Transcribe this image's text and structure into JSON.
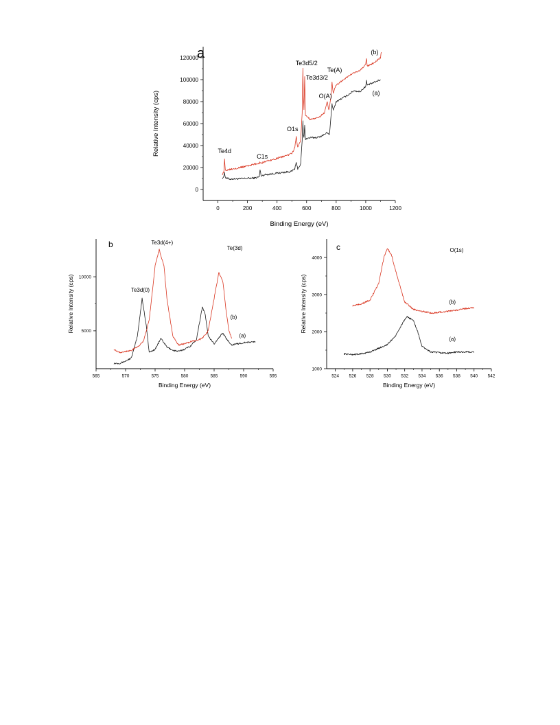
{
  "colors": {
    "series_a": "#1a1a1a",
    "series_b": "#d9341f"
  },
  "chart_data": [
    {
      "id": "a",
      "type": "line",
      "panel_label": "a",
      "xlabel": "Binding Energy (eV)",
      "ylabel": "Relative Intensity (cps)",
      "xlim": [
        -100,
        1200
      ],
      "ylim": [
        -10000,
        130000
      ],
      "xticks": [
        0,
        200,
        400,
        600,
        800,
        1000,
        1200
      ],
      "yticks": [
        0,
        20000,
        40000,
        60000,
        80000,
        100000,
        120000
      ],
      "grid": false,
      "series": [
        {
          "name": "(a)",
          "color": "#1a1a1a",
          "points": [
            [
              30,
              10500
            ],
            [
              40,
              11500
            ],
            [
              45,
              16000
            ],
            [
              50,
              10800
            ],
            [
              80,
              9500
            ],
            [
              150,
              9800
            ],
            [
              200,
              10200
            ],
            [
              250,
              10500
            ],
            [
              280,
              11500
            ],
            [
              285,
              18000
            ],
            [
              292,
              12500
            ],
            [
              320,
              13500
            ],
            [
              380,
              14500
            ],
            [
              440,
              15500
            ],
            [
              500,
              16500
            ],
            [
              520,
              19000
            ],
            [
              530,
              24000
            ],
            [
              540,
              19000
            ],
            [
              560,
              23000
            ],
            [
              570,
              45000
            ],
            [
              575,
              62000
            ],
            [
              578,
              50000
            ],
            [
              582,
              47000
            ],
            [
              587,
              58000
            ],
            [
              592,
              46000
            ],
            [
              620,
              47000
            ],
            [
              680,
              47500
            ],
            [
              720,
              50000
            ],
            [
              740,
              52000
            ],
            [
              755,
              50000
            ],
            [
              765,
              66000
            ],
            [
              772,
              78000
            ],
            [
              780,
              72000
            ],
            [
              800,
              80000
            ],
            [
              840,
              83000
            ],
            [
              880,
              86000
            ],
            [
              920,
              90000
            ],
            [
              960,
              89000
            ],
            [
              1000,
              94000
            ],
            [
              1005,
              99000
            ],
            [
              1010,
              95000
            ],
            [
              1050,
              97000
            ],
            [
              1100,
              100000
            ]
          ]
        },
        {
          "name": "(b)",
          "color": "#d9341f",
          "points": [
            [
              30,
              14000
            ],
            [
              40,
              16000
            ],
            [
              45,
              27000
            ],
            [
              50,
              17500
            ],
            [
              80,
              18500
            ],
            [
              150,
              20000
            ],
            [
              200,
              21500
            ],
            [
              250,
              23000
            ],
            [
              280,
              24000
            ],
            [
              285,
              25000
            ],
            [
              292,
              24000
            ],
            [
              320,
              25500
            ],
            [
              380,
              27500
            ],
            [
              440,
              30000
            ],
            [
              500,
              32500
            ],
            [
              520,
              38000
            ],
            [
              530,
              48000
            ],
            [
              540,
              38000
            ],
            [
              560,
              45000
            ],
            [
              570,
              70000
            ],
            [
              575,
              111000
            ],
            [
              578,
              85000
            ],
            [
              582,
              72000
            ],
            [
              587,
              102000
            ],
            [
              592,
              68000
            ],
            [
              620,
              64000
            ],
            [
              680,
              65000
            ],
            [
              720,
              70000
            ],
            [
              740,
              80000
            ],
            [
              750,
              72000
            ],
            [
              765,
              84000
            ],
            [
              772,
              98000
            ],
            [
              780,
              88000
            ],
            [
              800,
              95000
            ],
            [
              840,
              99000
            ],
            [
              880,
              103000
            ],
            [
              920,
              106000
            ],
            [
              960,
              108000
            ],
            [
              1000,
              114000
            ],
            [
              1005,
              120000
            ],
            [
              1010,
              112000
            ],
            [
              1050,
              115000
            ],
            [
              1100,
              120000
            ],
            [
              1105,
              125000
            ]
          ]
        }
      ],
      "annotations": [
        {
          "text": "Te4d",
          "x": 45,
          "y": 33000
        },
        {
          "text": "C1s",
          "x": 300,
          "y": 28000
        },
        {
          "text": "O1s",
          "x": 505,
          "y": 53000
        },
        {
          "text": "Te3d5/2",
          "x": 600,
          "y": 113000
        },
        {
          "text": "Te3d3/2",
          "x": 670,
          "y": 100000
        },
        {
          "text": "O(A)",
          "x": 727,
          "y": 83000
        },
        {
          "text": "Te(A)",
          "x": 790,
          "y": 107000
        },
        {
          "text": "(b)",
          "x": 1060,
          "y": 123000
        },
        {
          "text": "(a)",
          "x": 1070,
          "y": 86000
        }
      ]
    },
    {
      "id": "b",
      "type": "line",
      "panel_label": "b",
      "xlabel": "Binding Energy (eV)",
      "ylabel": "Relative Intensity (cps)",
      "xlim": [
        565,
        595
      ],
      "ylim": [
        1500,
        13500
      ],
      "xticks": [
        565,
        570,
        575,
        580,
        585,
        590,
        595
      ],
      "yticks": [
        5000,
        10000
      ],
      "grid": false,
      "series": [
        {
          "name": "(a)",
          "color": "#1a1a1a",
          "points": [
            [
              568,
              2000
            ],
            [
              569,
              2000
            ],
            [
              570,
              2200
            ],
            [
              571,
              2500
            ],
            [
              572,
              4500
            ],
            [
              572.8,
              8000
            ],
            [
              573.5,
              5500
            ],
            [
              574,
              3000
            ],
            [
              575,
              3300
            ],
            [
              576,
              4300
            ],
            [
              577,
              3500
            ],
            [
              578,
              3200
            ],
            [
              579,
              3100
            ],
            [
              580,
              3300
            ],
            [
              581,
              3600
            ],
            [
              582,
              4200
            ],
            [
              583,
              7200
            ],
            [
              583.5,
              6500
            ],
            [
              584,
              4500
            ],
            [
              585,
              3800
            ],
            [
              586,
              4500
            ],
            [
              586.5,
              4800
            ],
            [
              587,
              4300
            ],
            [
              588,
              3700
            ],
            [
              589,
              3800
            ],
            [
              590,
              3900
            ],
            [
              591,
              3950
            ],
            [
              592,
              4000
            ]
          ]
        },
        {
          "name": "(b)",
          "color": "#d9341f",
          "points": [
            [
              568,
              3300
            ],
            [
              569,
              3000
            ],
            [
              570,
              3100
            ],
            [
              571,
              3200
            ],
            [
              572,
              3500
            ],
            [
              573,
              4000
            ],
            [
              574,
              6000
            ],
            [
              575,
              11000
            ],
            [
              575.7,
              12500
            ],
            [
              576.5,
              11000
            ],
            [
              577,
              8000
            ],
            [
              578,
              4500
            ],
            [
              579,
              3700
            ],
            [
              580,
              3800
            ],
            [
              581,
              4000
            ],
            [
              582,
              4100
            ],
            [
              583,
              4300
            ],
            [
              584,
              5000
            ],
            [
              585,
              8000
            ],
            [
              585.8,
              10400
            ],
            [
              586.5,
              9500
            ],
            [
              587,
              7000
            ],
            [
              587.5,
              5000
            ],
            [
              588,
              4300
            ]
          ]
        }
      ],
      "annotations": [
        {
          "text": "Te3d(0)",
          "x": 572.5,
          "y": 8600
        },
        {
          "text": "Te3d(4+)",
          "x": 576.2,
          "y": 13000
        },
        {
          "text": "Te(3d)",
          "x": 588.5,
          "y": 12500
        },
        {
          "text": "(b)",
          "x": 588.3,
          "y": 6100
        },
        {
          "text": "(a)",
          "x": 589.8,
          "y": 4400
        }
      ]
    },
    {
      "id": "c",
      "type": "line",
      "panel_label": "c",
      "xlabel": "Binding Energy (eV)",
      "ylabel": "Relative Intensity (cps)",
      "xlim": [
        523,
        542
      ],
      "ylim": [
        1000,
        4500
      ],
      "xticks": [
        524,
        526,
        528,
        530,
        532,
        534,
        536,
        538,
        540,
        542
      ],
      "yticks": [
        1000,
        2000,
        3000,
        4000
      ],
      "grid": false,
      "series": [
        {
          "name": "(a)",
          "color": "#1a1a1a",
          "points": [
            [
              525,
              1400
            ],
            [
              526,
              1380
            ],
            [
              527,
              1400
            ],
            [
              528,
              1450
            ],
            [
              529,
              1550
            ],
            [
              530,
              1650
            ],
            [
              531,
              1900
            ],
            [
              531.8,
              2250
            ],
            [
              532.3,
              2400
            ],
            [
              533,
              2300
            ],
            [
              533.5,
              2000
            ],
            [
              534,
              1600
            ],
            [
              535,
              1450
            ],
            [
              536,
              1430
            ],
            [
              537,
              1420
            ],
            [
              538,
              1450
            ],
            [
              539,
              1450
            ],
            [
              540,
              1450
            ]
          ]
        },
        {
          "name": "(b)",
          "color": "#d9341f",
          "points": [
            [
              526,
              2700
            ],
            [
              527,
              2750
            ],
            [
              528,
              2850
            ],
            [
              529,
              3300
            ],
            [
              529.6,
              4000
            ],
            [
              530,
              4250
            ],
            [
              530.5,
              4050
            ],
            [
              531,
              3600
            ],
            [
              532,
              2800
            ],
            [
              533,
              2600
            ],
            [
              534,
              2550
            ],
            [
              535,
              2500
            ],
            [
              536,
              2520
            ],
            [
              537,
              2550
            ],
            [
              538,
              2580
            ],
            [
              539,
              2620
            ],
            [
              540,
              2650
            ]
          ]
        }
      ],
      "annotations": [
        {
          "text": "O(1s)",
          "x": 538,
          "y": 4150
        },
        {
          "text": "(b)",
          "x": 537.5,
          "y": 2750
        },
        {
          "text": "(a)",
          "x": 537.5,
          "y": 1750
        }
      ]
    }
  ]
}
